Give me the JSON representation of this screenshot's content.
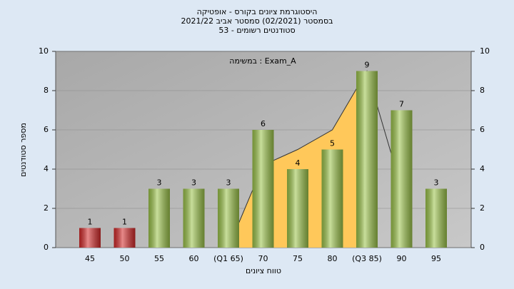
{
  "chart_data": {
    "type": "bar",
    "title": [
      "היסטוגרמת ציונים בקורס - אופטיקה",
      "בסמסטר  (02/2021)  סמסטר אביב 2021/22",
      "סטודנטים רשומים - 53"
    ],
    "annotation": "במשימה : Exam_A",
    "x_label": "טווח ציונים",
    "y_label": "מספר סטודנטים",
    "categories": [
      "45",
      "50",
      "55",
      "60",
      "(Q1 65)",
      "70",
      "75",
      "80",
      "(Q3 85)",
      "90",
      "95"
    ],
    "values": [
      1,
      1,
      3,
      3,
      3,
      6,
      4,
      5,
      9,
      7,
      3
    ],
    "colors": [
      "#d42a2a",
      "#d42a2a",
      "#9cc44a",
      "#9cc44a",
      "#9cc44a",
      "#9cc44a",
      "#9cc44a",
      "#9cc44a",
      "#9cc44a",
      "#9cc44a",
      "#9cc44a"
    ],
    "overlay": {
      "color": "#ffc85a",
      "values": [
        null,
        null,
        null,
        null,
        0,
        4.2,
        5,
        6,
        9,
        3,
        null
      ]
    },
    "ylim": [
      0,
      10
    ],
    "yticks": [
      0,
      2,
      4,
      6,
      8,
      10
    ],
    "y2lim": [
      0,
      10
    ],
    "y2ticks": [
      0,
      2,
      4,
      6,
      8,
      10
    ],
    "grid": true
  }
}
